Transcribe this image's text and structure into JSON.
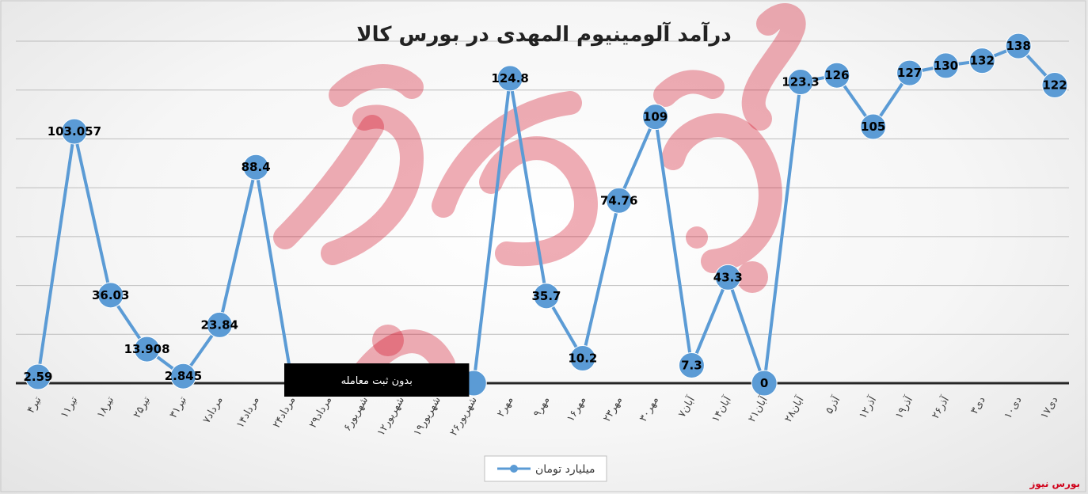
{
  "chart_data": {
    "type": "line",
    "title": "درآمد آلومینیوم المهدی در بورس کالا",
    "xlabel": "",
    "ylabel": "",
    "ylim": [
      0,
      140
    ],
    "grid": true,
    "legend_position": "bottom",
    "categories": [
      "۴تیر",
      "۱۱تیر",
      "۱۸تیر",
      "۲۵تیر",
      "۳۱تیر",
      "۷مرداد",
      "۱۴مرداد",
      "۲۴مرداد",
      "۲۹مرداد",
      "۶شهریور",
      "۱۲شهریور",
      "۱۹شهریور",
      "۲۶شهریور",
      "۲مهر",
      "۹مهر",
      "۱۶مهر",
      "۲۳مهر",
      "۳۰مهر",
      "۷آبان",
      "۱۴آبان",
      "۲۱آبان",
      "۲۸آبان",
      "۵آذر",
      "۱۲آذر",
      "۱۹آذر",
      "۲۶آذر",
      "۳دی",
      "۱۰دی",
      "۱۷دی"
    ],
    "series": [
      {
        "name": "میلیارد تومان",
        "color": "#5b9bd5",
        "values": [
          2.59,
          103.057,
          36.03,
          13.908,
          2.845,
          23.84,
          88.4,
          null,
          null,
          null,
          null,
          null,
          0,
          124.8,
          35.7,
          10.2,
          74.76,
          109,
          7.3,
          43.3,
          0,
          123.3,
          126,
          105,
          127,
          130,
          132,
          138,
          122
        ],
        "labels": [
          "2.59",
          "103.057",
          "36.03",
          "13.908",
          "2.845",
          "23.84",
          "88.4",
          null,
          null,
          null,
          null,
          null,
          null,
          "124.8",
          "35.7",
          "10.2",
          "74.76",
          "109",
          "7.3",
          "43.3",
          "0",
          "123.3",
          "126",
          "105",
          "127",
          "130",
          "132",
          "138",
          "122"
        ]
      }
    ],
    "gap_annotation": "بدون ثبت معامله",
    "gap_from_index": 6,
    "gap_to_index": 12
  },
  "watermark": {
    "brand": "بورس نیوز",
    "color": "#d0021b"
  }
}
